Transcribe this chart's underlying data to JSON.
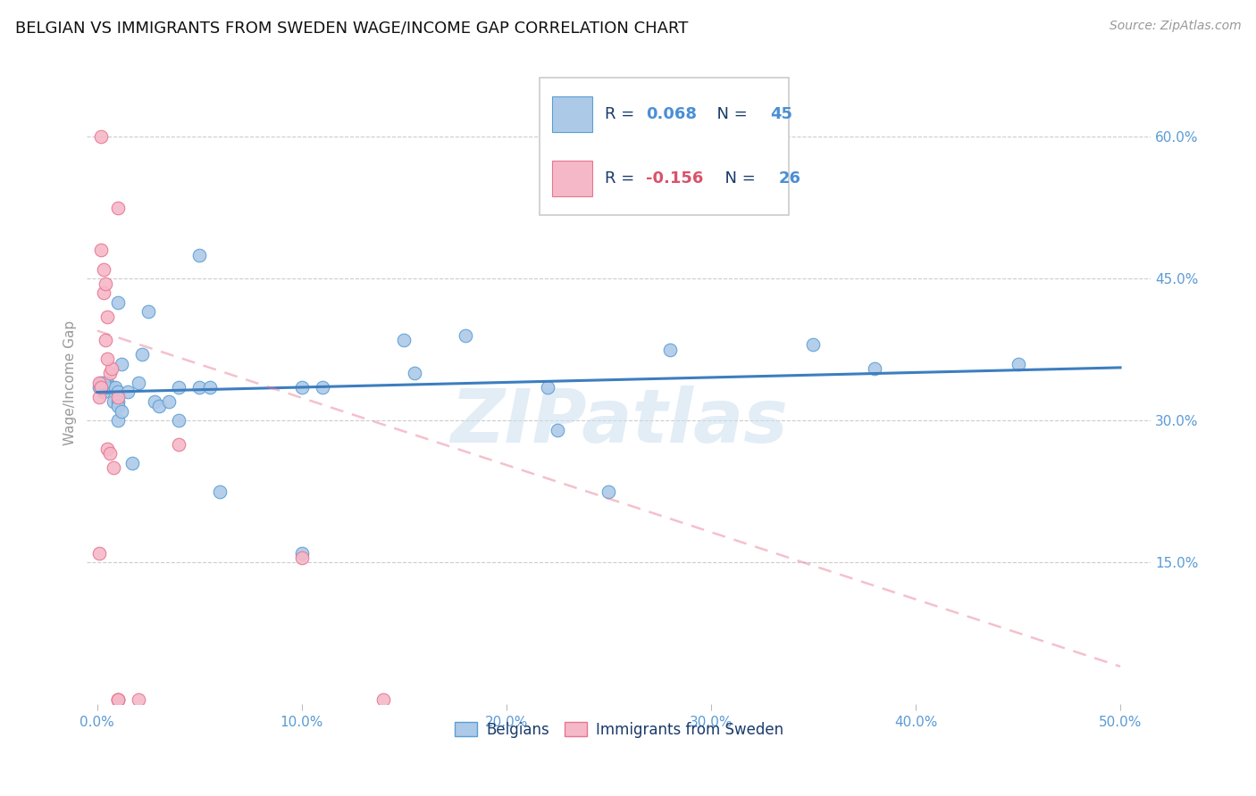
{
  "title": "BELGIAN VS IMMIGRANTS FROM SWEDEN WAGE/INCOME GAP CORRELATION CHART",
  "source": "Source: ZipAtlas.com",
  "ylabel": "Wage/Income Gap",
  "right_yticks": [
    "60.0%",
    "45.0%",
    "30.0%",
    "15.0%"
  ],
  "right_ytick_vals": [
    0.6,
    0.45,
    0.3,
    0.15
  ],
  "legend_blue_r": "0.068",
  "legend_blue_n": "45",
  "legend_pink_r": "-0.156",
  "legend_pink_n": "26",
  "legend_label_blue": "Belgians",
  "legend_label_pink": "Immigrants from Sweden",
  "blue_color": "#adc9e8",
  "blue_edge_color": "#5a9fd4",
  "blue_line_color": "#3d7ebf",
  "pink_color": "#f5b8c8",
  "pink_edge_color": "#e8758f",
  "pink_line_color": "#d9536a",
  "watermark": "ZIPatlas",
  "blue_scatter_x": [
    0.001,
    0.002,
    0.003,
    0.004,
    0.005,
    0.006,
    0.007,
    0.008,
    0.009,
    0.01,
    0.01,
    0.01,
    0.01,
    0.01,
    0.012,
    0.012,
    0.015,
    0.017,
    0.02,
    0.022,
    0.025,
    0.028,
    0.03,
    0.035,
    0.04,
    0.04,
    0.05,
    0.05,
    0.055,
    0.06,
    0.1,
    0.1,
    0.11,
    0.15,
    0.155,
    0.18,
    0.22,
    0.225,
    0.25,
    0.28,
    0.35,
    0.38,
    0.45,
    0.002,
    0.003
  ],
  "blue_scatter_y": [
    0.335,
    0.34,
    0.33,
    0.335,
    0.34,
    0.335,
    0.335,
    0.32,
    0.335,
    0.425,
    0.33,
    0.32,
    0.315,
    0.3,
    0.36,
    0.31,
    0.33,
    0.255,
    0.34,
    0.37,
    0.415,
    0.32,
    0.315,
    0.32,
    0.3,
    0.335,
    0.335,
    0.475,
    0.335,
    0.225,
    0.335,
    0.16,
    0.335,
    0.385,
    0.35,
    0.39,
    0.335,
    0.29,
    0.225,
    0.375,
    0.38,
    0.355,
    0.36,
    0.335,
    0.34
  ],
  "pink_scatter_x": [
    0.001,
    0.001,
    0.001,
    0.002,
    0.002,
    0.003,
    0.003,
    0.004,
    0.004,
    0.005,
    0.005,
    0.006,
    0.006,
    0.007,
    0.008,
    0.01,
    0.01,
    0.01,
    0.02,
    0.04,
    0.1,
    0.14,
    0.002,
    0.005,
    0.01,
    0.01
  ],
  "pink_scatter_y": [
    0.34,
    0.325,
    0.16,
    0.335,
    0.6,
    0.46,
    0.435,
    0.445,
    0.385,
    0.41,
    0.27,
    0.35,
    0.265,
    0.355,
    0.25,
    0.325,
    0.005,
    0.525,
    0.005,
    0.275,
    0.155,
    0.005,
    0.48,
    0.365,
    0.005,
    0.005
  ],
  "blue_trend_x": [
    0.0,
    0.5
  ],
  "blue_trend_y": [
    0.33,
    0.356
  ],
  "pink_trend_x": [
    0.0,
    0.5
  ],
  "pink_trend_y": [
    0.395,
    0.04
  ],
  "xlim": [
    -0.005,
    0.515
  ],
  "ylim": [
    0.0,
    0.68
  ],
  "xtick_vals": [
    0.0,
    0.1,
    0.2,
    0.3,
    0.4,
    0.5
  ],
  "xtick_labels": [
    "0.0%",
    "10.0%",
    "20.0%",
    "30.0%",
    "40.0%",
    "50.0%"
  ]
}
